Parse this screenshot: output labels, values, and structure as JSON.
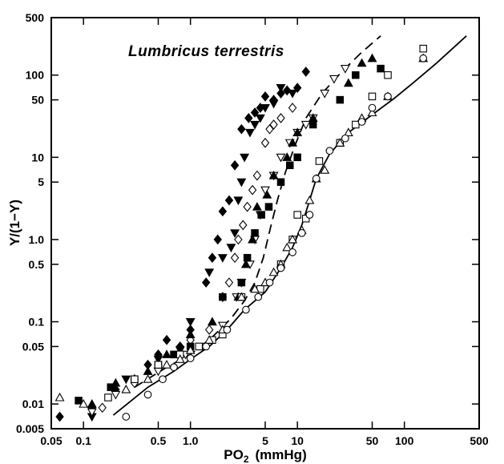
{
  "chart_data": {
    "type": "scatter",
    "title": "Lumbricus terrestris",
    "xlabel": "PO",
    "xlabel_subscript": "2",
    "xlabel_unit": "(mmHg)",
    "ylabel": "Y/(1−Y)",
    "x_scale": "log",
    "y_scale": "log",
    "xlim": [
      0.05,
      500
    ],
    "ylim": [
      0.005,
      500
    ],
    "grid": false,
    "legend": "none",
    "x_ticks": [
      {
        "value": 0.05,
        "label": "0.05"
      },
      {
        "value": 0.1,
        "label": "0.1"
      },
      {
        "value": 0.5,
        "label": "0.5"
      },
      {
        "value": 1,
        "label": "1.0"
      },
      {
        "value": 5,
        "label": "5"
      },
      {
        "value": 10,
        "label": "10"
      },
      {
        "value": 50,
        "label": "50"
      },
      {
        "value": 100,
        "label": "100"
      },
      {
        "value": 500,
        "label": "500"
      }
    ],
    "y_ticks": [
      {
        "value": 0.005,
        "label": "0.005"
      },
      {
        "value": 0.01,
        "label": "0.01"
      },
      {
        "value": 0.05,
        "label": "0.05"
      },
      {
        "value": 0.1,
        "label": "0.1"
      },
      {
        "value": 0.5,
        "label": "0.5"
      },
      {
        "value": 1,
        "label": "1.0"
      },
      {
        "value": 5,
        "label": "5"
      },
      {
        "value": 10,
        "label": "10"
      },
      {
        "value": 50,
        "label": "50"
      },
      {
        "value": 100,
        "label": "100"
      },
      {
        "value": 500,
        "label": "500"
      }
    ],
    "fit_lines": [
      {
        "style": "solid",
        "color": "#000000",
        "points": [
          [
            0.19,
            0.0073
          ],
          [
            0.4,
            0.016
          ],
          [
            0.7,
            0.025
          ],
          [
            1.0,
            0.035
          ],
          [
            1.5,
            0.05
          ],
          [
            2.2,
            0.08
          ],
          [
            3.2,
            0.14
          ],
          [
            5,
            0.23
          ],
          [
            7,
            0.45
          ],
          [
            9,
            0.8
          ],
          [
            11,
            1.5
          ],
          [
            13,
            3.0
          ],
          [
            15,
            5.5
          ],
          [
            20,
            11
          ],
          [
            30,
            20
          ],
          [
            50,
            33
          ],
          [
            80,
            52
          ],
          [
            120,
            80
          ],
          [
            200,
            140
          ],
          [
            380,
            300
          ]
        ]
      },
      {
        "style": "dashed",
        "color": "#000000",
        "points": [
          [
            0.3,
            0.016
          ],
          [
            0.6,
            0.028
          ],
          [
            1.0,
            0.04
          ],
          [
            1.6,
            0.065
          ],
          [
            2.4,
            0.11
          ],
          [
            3.2,
            0.18
          ],
          [
            4.0,
            0.3
          ],
          [
            4.8,
            0.6
          ],
          [
            5.6,
            1.4
          ],
          [
            6.5,
            3.0
          ],
          [
            7.7,
            6.5
          ],
          [
            9.5,
            14
          ],
          [
            12,
            30
          ],
          [
            17,
            60
          ],
          [
            26,
            110
          ],
          [
            40,
            190
          ],
          [
            60,
            300
          ]
        ]
      }
    ],
    "series": [
      {
        "marker": "filled-diamond",
        "points": [
          [
            0.06,
            0.007
          ],
          [
            0.12,
            0.009
          ],
          [
            0.2,
            0.015
          ],
          [
            0.3,
            0.02
          ],
          [
            0.4,
            0.03
          ],
          [
            0.5,
            0.04
          ],
          [
            0.6,
            0.06
          ],
          [
            0.8,
            0.05
          ],
          [
            1.0,
            0.08
          ],
          [
            1.4,
            0.3
          ],
          [
            1.6,
            0.6
          ],
          [
            1.8,
            1.0
          ],
          [
            2.0,
            2.2
          ],
          [
            2.3,
            3
          ],
          [
            2.6,
            8
          ],
          [
            3.0,
            22
          ],
          [
            3.5,
            30
          ],
          [
            4.0,
            35
          ],
          [
            4.5,
            40
          ],
          [
            5.0,
            55
          ],
          [
            6.0,
            50
          ],
          [
            7.0,
            60
          ],
          [
            8.0,
            65
          ],
          [
            10,
            70
          ],
          [
            12,
            110
          ]
        ]
      },
      {
        "marker": "filled-down-triangle",
        "points": [
          [
            0.12,
            0.007
          ],
          [
            0.25,
            0.02
          ],
          [
            0.5,
            0.035
          ],
          [
            0.8,
            0.045
          ],
          [
            1.0,
            0.1
          ],
          [
            1.5,
            0.4
          ],
          [
            2.0,
            0.6
          ],
          [
            2.4,
            0.8
          ],
          [
            2.6,
            1.2
          ],
          [
            2.8,
            3
          ],
          [
            3.0,
            5
          ],
          [
            3.2,
            10
          ],
          [
            3.6,
            20
          ],
          [
            4.0,
            25
          ],
          [
            4.5,
            30
          ],
          [
            5.0,
            40
          ],
          [
            6.0,
            45
          ],
          [
            7.0,
            70
          ],
          [
            9.0,
            60
          ]
        ]
      },
      {
        "marker": "open-diamond",
        "points": [
          [
            0.15,
            0.009
          ],
          [
            0.3,
            0.018
          ],
          [
            0.5,
            0.03
          ],
          [
            0.8,
            0.04
          ],
          [
            1.0,
            0.06
          ],
          [
            1.5,
            0.08
          ],
          [
            2.0,
            0.2
          ],
          [
            2.3,
            0.3
          ],
          [
            2.6,
            0.6
          ],
          [
            2.8,
            1.0
          ],
          [
            3.1,
            1.5
          ],
          [
            3.4,
            2.5
          ],
          [
            3.8,
            4
          ],
          [
            4.2,
            6
          ],
          [
            5.0,
            15
          ],
          [
            5.5,
            22
          ],
          [
            6.0,
            25
          ],
          [
            7.0,
            30
          ],
          [
            9.0,
            40
          ]
        ]
      },
      {
        "marker": "open-down-triangle",
        "points": [
          [
            0.12,
            0.008
          ],
          [
            0.2,
            0.013
          ],
          [
            0.5,
            0.025
          ],
          [
            0.9,
            0.04
          ],
          [
            1.3,
            0.05
          ],
          [
            2.0,
            0.09
          ],
          [
            2.7,
            0.2
          ],
          [
            3.0,
            0.3
          ],
          [
            3.6,
            0.5
          ],
          [
            4.0,
            1.0
          ],
          [
            4.5,
            2.0
          ],
          [
            5.0,
            4.0
          ],
          [
            6.0,
            6
          ],
          [
            7.0,
            10
          ],
          [
            8.5,
            15
          ],
          [
            10,
            20
          ],
          [
            12,
            25
          ],
          [
            14,
            30
          ],
          [
            18,
            60
          ],
          [
            22,
            90
          ],
          [
            28,
            120
          ]
        ]
      },
      {
        "marker": "filled-square",
        "points": [
          [
            0.09,
            0.011
          ],
          [
            0.18,
            0.016
          ],
          [
            0.3,
            0.02
          ],
          [
            0.5,
            0.03
          ],
          [
            0.7,
            0.04
          ],
          [
            1.0,
            0.05
          ],
          [
            2.0,
            0.2
          ],
          [
            3.0,
            0.3
          ],
          [
            3.4,
            0.6
          ],
          [
            4.0,
            1.2
          ],
          [
            4.6,
            2.0
          ],
          [
            5.4,
            2.5
          ],
          [
            7.0,
            5
          ],
          [
            8.5,
            8
          ],
          [
            10,
            10
          ],
          [
            14,
            25
          ],
          [
            25,
            50
          ],
          [
            35,
            100
          ],
          [
            60,
            120
          ]
        ]
      },
      {
        "marker": "filled-up-triangle",
        "points": [
          [
            0.12,
            0.01
          ],
          [
            0.2,
            0.018
          ],
          [
            0.4,
            0.025
          ],
          [
            0.6,
            0.04
          ],
          [
            1.0,
            0.07
          ],
          [
            1.6,
            0.1
          ],
          [
            2.8,
            0.2
          ],
          [
            3.3,
            0.5
          ],
          [
            3.8,
            1.0
          ],
          [
            4.2,
            2.5
          ],
          [
            5.2,
            3.5
          ],
          [
            6.0,
            6
          ],
          [
            8,
            10
          ],
          [
            9,
            15
          ],
          [
            10,
            20
          ],
          [
            14,
            30
          ],
          [
            30,
            80
          ],
          [
            40,
            140
          ],
          [
            50,
            160
          ]
        ]
      },
      {
        "marker": "open-square",
        "points": [
          [
            0.17,
            0.012
          ],
          [
            0.3,
            0.02
          ],
          [
            0.5,
            0.03
          ],
          [
            0.8,
            0.04
          ],
          [
            1.2,
            0.05
          ],
          [
            1.6,
            0.06
          ],
          [
            2.0,
            0.07
          ],
          [
            3.0,
            0.2
          ],
          [
            4.5,
            0.25
          ],
          [
            7,
            0.5
          ],
          [
            9,
            1.0
          ],
          [
            10,
            2.0
          ],
          [
            12,
            1.8
          ],
          [
            16,
            9
          ],
          [
            25,
            15
          ],
          [
            35,
            25
          ],
          [
            50,
            55
          ],
          [
            70,
            100
          ],
          [
            150,
            210
          ]
        ]
      },
      {
        "marker": "open-up-triangle",
        "points": [
          [
            0.06,
            0.012
          ],
          [
            0.1,
            0.01
          ],
          [
            0.25,
            0.015
          ],
          [
            0.4,
            0.02
          ],
          [
            0.6,
            0.03
          ],
          [
            0.8,
            0.035
          ],
          [
            1.0,
            0.045
          ],
          [
            1.5,
            0.06
          ],
          [
            2.0,
            0.08
          ],
          [
            3.0,
            0.2
          ],
          [
            4.0,
            0.25
          ],
          [
            5.0,
            0.3
          ],
          [
            6.0,
            0.4
          ],
          [
            7.0,
            0.5
          ],
          [
            8,
            0.8
          ],
          [
            9,
            1.0
          ],
          [
            11,
            1.3
          ],
          [
            13,
            3.0
          ],
          [
            15,
            5.5
          ],
          [
            18,
            7
          ],
          [
            25,
            15
          ],
          [
            30,
            20
          ],
          [
            40,
            30
          ],
          [
            50,
            35
          ],
          [
            70,
            55
          ],
          [
            150,
            160
          ]
        ]
      },
      {
        "marker": "open-circle",
        "points": [
          [
            0.25,
            0.007
          ],
          [
            0.4,
            0.013
          ],
          [
            0.55,
            0.02
          ],
          [
            0.7,
            0.028
          ],
          [
            1.0,
            0.036
          ],
          [
            1.4,
            0.05
          ],
          [
            2.2,
            0.08
          ],
          [
            3.3,
            0.14
          ],
          [
            4.3,
            0.2
          ],
          [
            5.5,
            0.3
          ],
          [
            7,
            0.45
          ],
          [
            9,
            0.7
          ],
          [
            11,
            1.2
          ],
          [
            13,
            2.0
          ],
          [
            15,
            5.5
          ],
          [
            20,
            12
          ],
          [
            28,
            17
          ],
          [
            40,
            27
          ],
          [
            50,
            40
          ],
          [
            70,
            55
          ],
          [
            150,
            160
          ]
        ]
      }
    ]
  }
}
